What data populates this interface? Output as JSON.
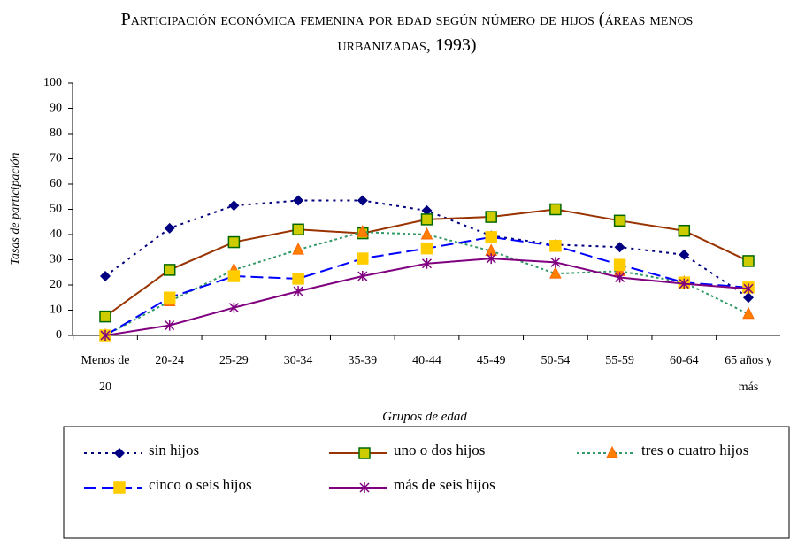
{
  "chart_data": {
    "type": "line",
    "title": "Participación económica femenina por edad según número de hijos (áreas menos urbanizadas, 1993)",
    "y_label": "Tasas de participación",
    "x_label": "Grupos de edad",
    "categories": [
      "Menos de 20",
      "20-24",
      "25-29",
      "30-34",
      "35-39",
      "40-44",
      "45-49",
      "50-54",
      "55-59",
      "60-64",
      "65 años y más"
    ],
    "ylim": [
      0,
      100
    ],
    "yticks": [
      0,
      10,
      20,
      30,
      40,
      50,
      60,
      70,
      80,
      90,
      100
    ],
    "series": [
      {
        "name": "sin hijos",
        "color": "#000080",
        "dash": "3,5",
        "marker": "diamond",
        "marker_color": "#000080",
        "values": [
          23.5,
          42.5,
          51.5,
          53.5,
          53.5,
          49.5,
          39.5,
          36,
          35,
          32,
          15
        ]
      },
      {
        "name": "uno o dos hijos",
        "color": "#993300",
        "dash": "none",
        "marker": "square",
        "marker_color": "#cccc00",
        "values": [
          7.5,
          26,
          37,
          42,
          40.5,
          46,
          47,
          50,
          45.5,
          41.5,
          29.5
        ]
      },
      {
        "name": "tres o cuatro hijos",
        "color": "#339966",
        "dash": "3,3",
        "marker": "triangle",
        "marker_color": "#ff8000",
        "values": [
          0,
          13.5,
          26,
          34,
          41,
          40,
          33.5,
          24.5,
          25.5,
          21,
          8.5
        ]
      },
      {
        "name": "cinco o seis hijos",
        "color": "#0000ff",
        "dash": "14,6",
        "marker": "square",
        "marker_color": "#ffcc00",
        "values": [
          0,
          15,
          23.5,
          22.5,
          30.5,
          34.5,
          39,
          35.5,
          28,
          21,
          19
        ]
      },
      {
        "name": "más de seis hijos",
        "color": "#800080",
        "dash": "none",
        "marker": "star",
        "marker_color": "#800080",
        "values": [
          0,
          4,
          11,
          17.5,
          23.5,
          28.5,
          30.5,
          29,
          23,
          20.5,
          18.5
        ]
      }
    ]
  }
}
